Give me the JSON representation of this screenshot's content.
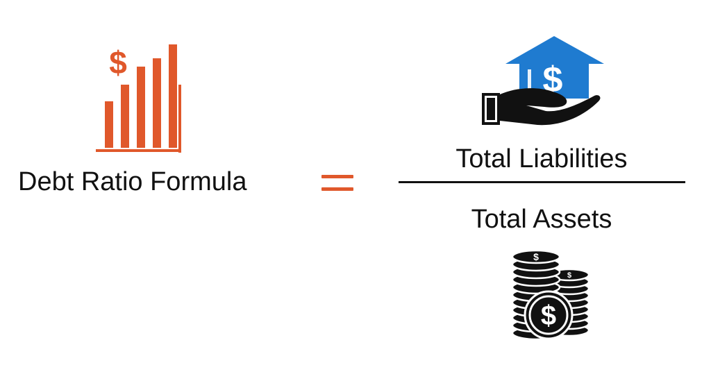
{
  "formula": {
    "label": "Debt Ratio Formula",
    "numerator": "Total Liabilities",
    "denominator": "Total Assets"
  },
  "icons": {
    "left": "growth-chart-dollar-icon",
    "top": "house-on-hand-dollar-icon",
    "bottom": "coin-stacks-dollar-icon",
    "dollar_glyph": "$"
  },
  "colors": {
    "accent_orange": "#e0582b",
    "house_blue": "#1f7bd0",
    "text": "#111111"
  }
}
